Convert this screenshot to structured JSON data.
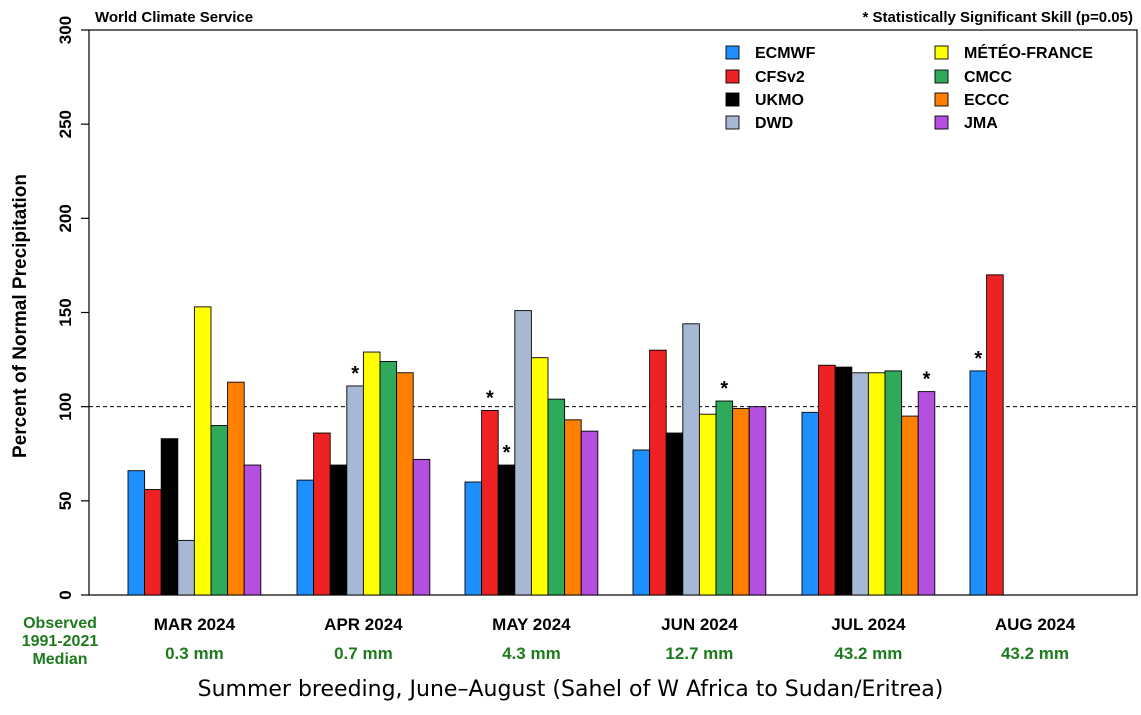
{
  "chart_data": {
    "type": "bar",
    "source_label": "World Climate Service",
    "significance_note": "* Statistically Significant Skill (p=0.05)",
    "ylabel": "Percent of Normal Precipitation",
    "ylim": [
      0,
      300
    ],
    "yticks": [
      "0",
      "50",
      "100",
      "150",
      "200",
      "250",
      "300"
    ],
    "reference_line": 100,
    "categories": [
      "MAR 2024",
      "APR 2024",
      "MAY 2024",
      "JUN 2024",
      "JUL 2024",
      "AUG 2024"
    ],
    "observed_label": [
      "Observed",
      "1991-2021",
      "Median"
    ],
    "observed_medians": [
      "0.3 mm",
      "0.7 mm",
      "4.3 mm",
      "12.7 mm",
      "43.2 mm",
      "43.2 mm"
    ],
    "series": [
      {
        "name": "ECMWF",
        "color": "#1f8fff",
        "values": [
          66,
          61,
          60,
          77,
          97,
          119
        ],
        "significant": [
          false,
          false,
          false,
          false,
          false,
          true
        ]
      },
      {
        "name": "CFSv2",
        "color": "#ee2222",
        "values": [
          56,
          86,
          98,
          130,
          122,
          170
        ],
        "significant": [
          false,
          false,
          true,
          false,
          false,
          false
        ]
      },
      {
        "name": "UKMO",
        "color": "#000000",
        "values": [
          83,
          69,
          69,
          86,
          121,
          null
        ],
        "significant": [
          false,
          false,
          true,
          false,
          false,
          false
        ]
      },
      {
        "name": "DWD",
        "color": "#a6b8d3",
        "values": [
          29,
          111,
          151,
          144,
          118,
          null
        ],
        "significant": [
          false,
          true,
          false,
          false,
          false,
          false
        ]
      },
      {
        "name": "MÉTÉO-FRANCE",
        "color": "#ffff00",
        "values": [
          153,
          129,
          126,
          96,
          118,
          null
        ],
        "significant": [
          false,
          false,
          false,
          false,
          false,
          false
        ]
      },
      {
        "name": "CMCC",
        "color": "#2faa5a",
        "values": [
          90,
          124,
          104,
          103,
          119,
          null
        ],
        "significant": [
          false,
          false,
          false,
          true,
          false,
          false
        ]
      },
      {
        "name": "ECCC",
        "color": "#ff8000",
        "values": [
          113,
          118,
          93,
          99,
          95,
          null
        ],
        "significant": [
          false,
          false,
          false,
          false,
          false,
          false
        ]
      },
      {
        "name": "JMA",
        "color": "#b44fe0",
        "values": [
          69,
          72,
          87,
          100,
          108,
          null
        ],
        "significant": [
          false,
          false,
          false,
          false,
          true,
          false
        ]
      }
    ],
    "caption": "Summer breeding, June–August (Sahel of W Africa to Sudan/Eritrea)"
  }
}
